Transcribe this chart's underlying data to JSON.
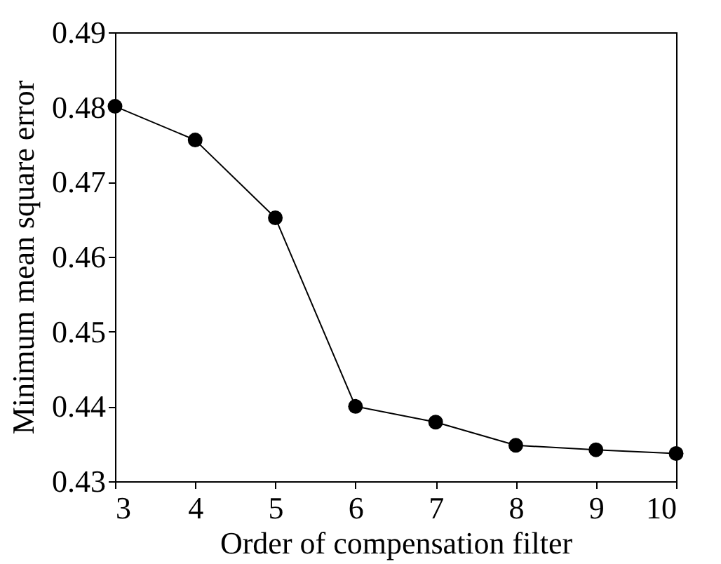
{
  "chart_data": {
    "type": "line",
    "xlabel": "Order of compensation filter",
    "ylabel": "Minimum mean square error",
    "x": [
      3,
      4,
      5,
      6,
      7,
      8,
      9,
      10
    ],
    "series": [
      {
        "color": "#000000",
        "values": [
          0.4801,
          0.4756,
          0.4652,
          0.44,
          0.4379,
          0.4348,
          0.4342,
          0.4337
        ]
      }
    ],
    "xlim": [
      3,
      10
    ],
    "xticks": [
      3,
      4,
      5,
      6,
      7,
      8,
      9,
      10
    ],
    "ylim": [
      0.43,
      0.49
    ],
    "yticks": [
      0.43,
      0.44,
      0.45,
      0.46,
      0.47,
      0.48,
      0.49
    ],
    "marker": "circle",
    "line_style": "solid"
  }
}
